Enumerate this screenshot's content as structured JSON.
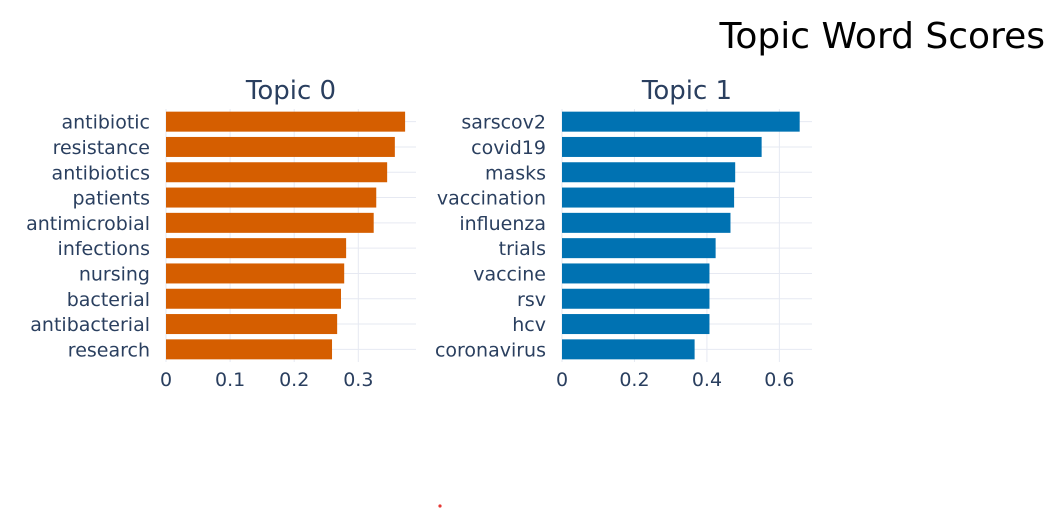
{
  "title": "Topic Word Scores",
  "colors": {
    "topic0": "#D55E00",
    "topic1": "#0072B2",
    "grid": "#E6E9F2",
    "text": "#2A3F5F",
    "marker": "#E53935"
  },
  "chart_data": [
    {
      "type": "bar",
      "orientation": "horizontal",
      "title": "Topic 0",
      "categories": [
        "antibiotic",
        "resistance",
        "antibiotics",
        "patients",
        "antimicrobial",
        "infections",
        "nursing",
        "bacterial",
        "antibacterial",
        "research"
      ],
      "values": [
        0.373,
        0.357,
        0.345,
        0.328,
        0.324,
        0.281,
        0.278,
        0.273,
        0.267,
        0.259
      ],
      "xlim": [
        0,
        0.39
      ],
      "xticks": [
        0,
        0.1,
        0.2,
        0.3
      ],
      "xtick_labels": [
        "0",
        "0.1",
        "0.2",
        "0.3"
      ],
      "grid": true,
      "xlabel": "",
      "ylabel": ""
    },
    {
      "type": "bar",
      "orientation": "horizontal",
      "title": "Topic 1",
      "categories": [
        "sarscov2",
        "covid19",
        "masks",
        "vaccination",
        "influenza",
        "trials",
        "vaccine",
        "rsv",
        "hcv",
        "coronavirus"
      ],
      "values": [
        0.656,
        0.551,
        0.478,
        0.475,
        0.465,
        0.424,
        0.407,
        0.407,
        0.407,
        0.366
      ],
      "xlim": [
        0,
        0.69
      ],
      "xticks": [
        0,
        0.2,
        0.4,
        0.6
      ],
      "xtick_labels": [
        "0",
        "0.2",
        "0.4",
        "0.6"
      ],
      "grid": true,
      "xlabel": "",
      "ylabel": ""
    }
  ]
}
